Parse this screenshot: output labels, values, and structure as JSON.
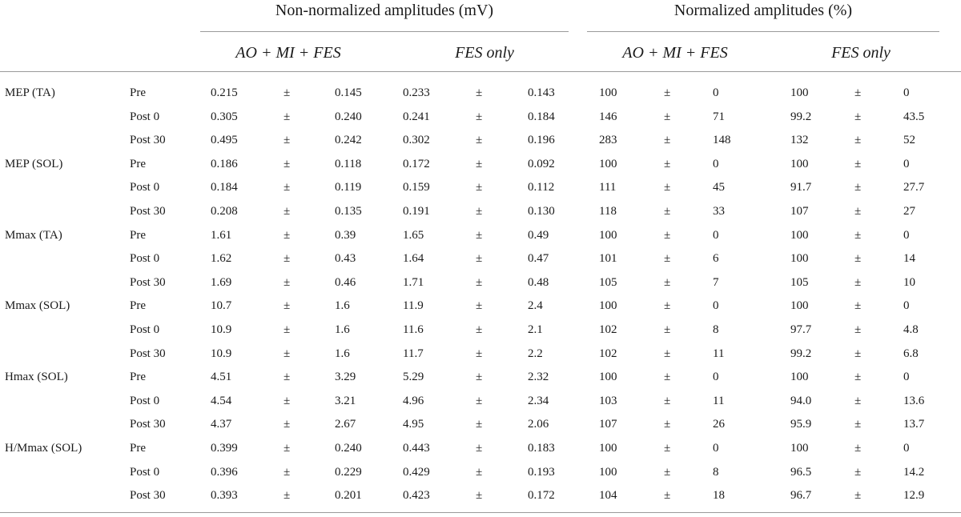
{
  "header": {
    "group1": "Non-normalized amplitudes (mV)",
    "group2": "Normalized amplitudes (%)",
    "sub": [
      "AO + MI + FES",
      "FES only",
      "AO + MI + FES",
      "FES only"
    ]
  },
  "pm": "±",
  "rows": [
    {
      "measure": "MEP (TA)",
      "phase": "Pre",
      "v": [
        "0.215",
        "0.145",
        "0.233",
        "0.143",
        "100",
        "0",
        "100",
        "0"
      ]
    },
    {
      "measure": "",
      "phase": "Post 0",
      "v": [
        "0.305",
        "0.240",
        "0.241",
        "0.184",
        "146",
        "71",
        "99.2",
        "43.5"
      ]
    },
    {
      "measure": "",
      "phase": "Post 30",
      "v": [
        "0.495",
        "0.242",
        "0.302",
        "0.196",
        "283",
        "148",
        "132",
        "52"
      ]
    },
    {
      "measure": "MEP (SOL)",
      "phase": "Pre",
      "v": [
        "0.186",
        "0.118",
        "0.172",
        "0.092",
        "100",
        "0",
        "100",
        "0"
      ]
    },
    {
      "measure": "",
      "phase": "Post 0",
      "v": [
        "0.184",
        "0.119",
        "0.159",
        "0.112",
        "111",
        "45",
        "91.7",
        "27.7"
      ]
    },
    {
      "measure": "",
      "phase": "Post 30",
      "v": [
        "0.208",
        "0.135",
        "0.191",
        "0.130",
        "118",
        "33",
        "107",
        "27"
      ]
    },
    {
      "measure": "Mmax (TA)",
      "phase": "Pre",
      "v": [
        "1.61",
        "0.39",
        "1.65",
        "0.49",
        "100",
        "0",
        "100",
        "0"
      ]
    },
    {
      "measure": "",
      "phase": "Post 0",
      "v": [
        "1.62",
        "0.43",
        "1.64",
        "0.47",
        "101",
        "6",
        "100",
        "14"
      ]
    },
    {
      "measure": "",
      "phase": "Post 30",
      "v": [
        "1.69",
        "0.46",
        "1.71",
        "0.48",
        "105",
        "7",
        "105",
        "10"
      ]
    },
    {
      "measure": "Mmax (SOL)",
      "phase": "Pre",
      "v": [
        "10.7",
        "1.6",
        "11.9",
        "2.4",
        "100",
        "0",
        "100",
        "0"
      ]
    },
    {
      "measure": "",
      "phase": "Post 0",
      "v": [
        "10.9",
        "1.6",
        "11.6",
        "2.1",
        "102",
        "8",
        "97.7",
        "4.8"
      ]
    },
    {
      "measure": "",
      "phase": "Post 30",
      "v": [
        "10.9",
        "1.6",
        "11.7",
        "2.2",
        "102",
        "11",
        "99.2",
        "6.8"
      ]
    },
    {
      "measure": "Hmax (SOL)",
      "phase": "Pre",
      "v": [
        "4.51",
        "3.29",
        "5.29",
        "2.32",
        "100",
        "0",
        "100",
        "0"
      ]
    },
    {
      "measure": "",
      "phase": "Post 0",
      "v": [
        "4.54",
        "3.21",
        "4.96",
        "2.34",
        "103",
        "11",
        "94.0",
        "13.6"
      ]
    },
    {
      "measure": "",
      "phase": "Post 30",
      "v": [
        "4.37",
        "2.67",
        "4.95",
        "2.06",
        "107",
        "26",
        "95.9",
        "13.7"
      ]
    },
    {
      "measure": "H/Mmax (SOL)",
      "phase": "Pre",
      "v": [
        "0.399",
        "0.240",
        "0.443",
        "0.183",
        "100",
        "0",
        "100",
        "0"
      ]
    },
    {
      "measure": "",
      "phase": "Post 0",
      "v": [
        "0.396",
        "0.229",
        "0.429",
        "0.193",
        "100",
        "8",
        "96.5",
        "14.2"
      ]
    },
    {
      "measure": "",
      "phase": "Post 30",
      "v": [
        "0.393",
        "0.201",
        "0.423",
        "0.172",
        "104",
        "18",
        "96.7",
        "12.9"
      ]
    }
  ]
}
